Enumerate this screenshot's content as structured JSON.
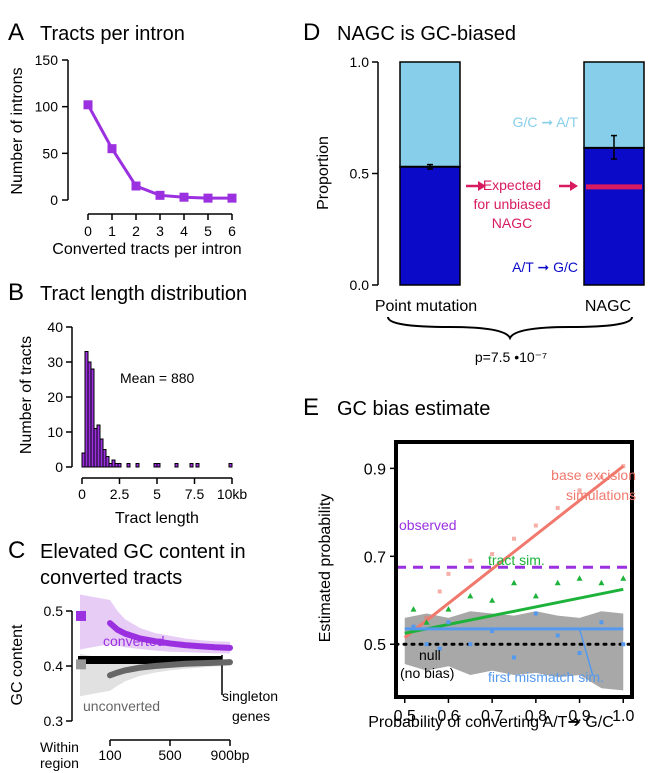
{
  "colors": {
    "purple": "#9b30e0",
    "purple_light": "#e3c4f5",
    "dark_blue": "#0a0ac8",
    "light_blue": "#87ceeb",
    "magenta": "#d81b60",
    "salmon": "#f0786c",
    "green": "#1db33a",
    "cornflower": "#5599ee",
    "gray": "#666666",
    "gray_band": "#a8a8a8"
  },
  "chart_data": [
    {
      "id": "A",
      "panel_label": "A",
      "type": "line",
      "title": "Tracts per intron",
      "xlabel": "Converted tracts per intron",
      "ylabel": "Number of introns",
      "x": [
        0,
        1,
        2,
        3,
        4,
        5,
        6
      ],
      "xticks": [
        "0",
        "1",
        "2",
        "3",
        "4",
        "5",
        "6"
      ],
      "values": [
        102,
        55,
        15,
        5,
        3,
        2,
        2
      ],
      "ylim": [
        0,
        150
      ],
      "yticks": [
        "0",
        "50",
        "100",
        "150"
      ]
    },
    {
      "id": "B",
      "panel_label": "B",
      "type": "bar",
      "title": "Tract length distribution",
      "xlabel": "Tract length",
      "ylabel": "Number of tracts",
      "xticks": [
        "0",
        "2.5",
        "5",
        "7.5",
        "10kb"
      ],
      "xlim_kb": [
        0,
        10
      ],
      "ylim": [
        0,
        40
      ],
      "yticks": [
        "0",
        "10",
        "20",
        "30",
        "40"
      ],
      "bin_width_kb": 0.2,
      "bin_starts_kb": [
        0,
        0.2,
        0.4,
        0.6,
        0.8,
        1.0,
        1.2,
        1.4,
        1.6,
        1.8,
        2.0,
        2.2,
        2.4,
        3.0,
        3.6,
        4.8,
        5.0,
        6.2,
        7.2,
        7.6,
        9.8
      ],
      "values": [
        4,
        33,
        30,
        28,
        11,
        12,
        8,
        5,
        3,
        1,
        2,
        1,
        1,
        1,
        1,
        1,
        1,
        1,
        1,
        1,
        1
      ],
      "annotation": "Mean = 880"
    },
    {
      "id": "C",
      "panel_label": "C",
      "type": "line",
      "title_lines": [
        "Elevated GC content in",
        "converted tracts"
      ],
      "ylabel": "GC content",
      "ylim": [
        0.3,
        0.5
      ],
      "yticks": [
        "0.3",
        "0.4",
        "0.5"
      ],
      "xticks": [
        "100",
        "500",
        "900bp"
      ],
      "xtick_values": [
        100,
        500,
        900
      ],
      "within_label_lines": [
        "Within",
        "region"
      ],
      "series": [
        {
          "name": "converted",
          "x": [
            100,
            150,
            200,
            300,
            400,
            500,
            600,
            700,
            800,
            900
          ],
          "values": [
            0.478,
            0.466,
            0.459,
            0.45,
            0.445,
            0.441,
            0.438,
            0.436,
            0.434,
            0.433
          ],
          "lower": [
            0.44,
            0.437,
            0.434,
            0.431,
            0.428,
            0.426,
            0.425,
            0.424,
            0.423,
            0.423
          ],
          "upper": [
            0.52,
            0.5,
            0.485,
            0.469,
            0.46,
            0.455,
            0.45,
            0.447,
            0.445,
            0.444
          ],
          "within": 0.491
        },
        {
          "name": "unconverted",
          "x": [
            100,
            150,
            200,
            300,
            400,
            500,
            600,
            700,
            800,
            900
          ],
          "values": [
            0.383,
            0.388,
            0.392,
            0.397,
            0.4,
            0.402,
            0.404,
            0.405,
            0.406,
            0.407
          ],
          "lower": [
            0.355,
            0.364,
            0.372,
            0.382,
            0.388,
            0.392,
            0.395,
            0.397,
            0.399,
            0.4
          ],
          "upper": [
            0.412,
            0.412,
            0.412,
            0.412,
            0.412,
            0.412,
            0.412,
            0.412,
            0.412,
            0.412
          ],
          "within": 0.403
        },
        {
          "name": "singleton genes",
          "x": [
            0,
            900
          ],
          "values": [
            0.411,
            0.411
          ]
        }
      ]
    },
    {
      "id": "D",
      "panel_label": "D",
      "type": "bar",
      "stacked": true,
      "title": "NAGC is GC-biased",
      "ylabel": "Proportion",
      "ylim": [
        0,
        1
      ],
      "yticks": [
        "0.0",
        "0.5",
        "1.0"
      ],
      "categories": [
        "Point mutation",
        "NAGC"
      ],
      "series": [
        {
          "name": "A/T → G/C",
          "values": [
            0.53,
            0.615
          ]
        },
        {
          "name": "G/C → A/T",
          "values": [
            0.47,
            0.385
          ]
        }
      ],
      "error_bars": [
        {
          "center": 0.53,
          "low": 0.52,
          "high": 0.54
        },
        {
          "center": 0.615,
          "low": 0.565,
          "high": 0.67
        }
      ],
      "expected_unbiased": 0.44,
      "expected_label_lines": [
        "Expected",
        "for unbiased",
        "NAGC"
      ],
      "legend_gc_to_at": "G/C ➞ A/T",
      "legend_at_to_gc": "A/T ➞ G/C",
      "pvalue": "p=7.5 •10⁻⁷"
    },
    {
      "id": "E",
      "panel_label": "E",
      "type": "scatter",
      "title": "GC bias estimate",
      "xlabel": "Probability of converting A/T➔ G/C",
      "ylabel": "Estimated probability",
      "xlim": [
        0.48,
        1.02
      ],
      "ylim": [
        0.38,
        0.96
      ],
      "xticks": [
        "0.5",
        "0.6",
        "0.7",
        "0.8",
        "0.9",
        "1.0"
      ],
      "xtick_values": [
        0.5,
        0.6,
        0.7,
        0.8,
        0.9,
        1.0
      ],
      "yticks": [
        "0.5",
        "0.7",
        "0.9"
      ],
      "ytick_values": [
        0.5,
        0.7,
        0.9
      ],
      "observed": 0.675,
      "observed_label": "observed",
      "null_value": 0.5,
      "null_label": "null",
      "null_sub_label": "(no bias)",
      "null_band": {
        "x": [
          0.5,
          0.55,
          0.6,
          0.65,
          0.7,
          0.75,
          0.8,
          0.85,
          0.9,
          0.95,
          1.0
        ],
        "upper": [
          0.56,
          0.57,
          0.56,
          0.575,
          0.57,
          0.565,
          0.575,
          0.565,
          0.56,
          0.575,
          0.57
        ],
        "lower": [
          0.455,
          0.44,
          0.45,
          0.43,
          0.44,
          0.43,
          0.435,
          0.425,
          0.43,
          0.4,
          0.395
        ]
      },
      "series": [
        {
          "name": "base excision",
          "name_line2": "simulations",
          "fit": [
            [
              0.5,
              0.515
            ],
            [
              1.0,
              0.905
            ]
          ],
          "points": [
            [
              0.52,
              0.54
            ],
            [
              0.55,
              0.56
            ],
            [
              0.58,
              0.62
            ],
            [
              0.6,
              0.66
            ],
            [
              0.65,
              0.69
            ],
            [
              0.7,
              0.705
            ],
            [
              0.75,
              0.74
            ],
            [
              0.8,
              0.77
            ],
            [
              0.85,
              0.81
            ],
            [
              0.9,
              0.85
            ],
            [
              0.95,
              0.88
            ],
            [
              1.0,
              0.905
            ]
          ]
        },
        {
          "name": "tract sim.",
          "fit": [
            [
              0.5,
              0.525
            ],
            [
              1.0,
              0.625
            ]
          ],
          "points": [
            [
              0.52,
              0.58
            ],
            [
              0.55,
              0.55
            ],
            [
              0.6,
              0.58
            ],
            [
              0.65,
              0.61
            ],
            [
              0.7,
              0.6
            ],
            [
              0.75,
              0.64
            ],
            [
              0.8,
              0.61
            ],
            [
              0.85,
              0.64
            ],
            [
              0.9,
              0.65
            ],
            [
              0.95,
              0.64
            ],
            [
              1.0,
              0.65
            ]
          ]
        },
        {
          "name": "first mismatch sim.",
          "fit": [
            [
              0.5,
              0.535
            ],
            [
              1.0,
              0.535
            ]
          ],
          "points": [
            [
              0.52,
              0.54
            ],
            [
              0.55,
              0.5
            ],
            [
              0.58,
              0.49
            ],
            [
              0.6,
              0.55
            ],
            [
              0.65,
              0.5
            ],
            [
              0.7,
              0.53
            ],
            [
              0.75,
              0.47
            ],
            [
              0.8,
              0.57
            ],
            [
              0.85,
              0.52
            ],
            [
              0.9,
              0.48
            ],
            [
              0.95,
              0.55
            ],
            [
              1.0,
              0.5
            ]
          ]
        }
      ]
    }
  ]
}
